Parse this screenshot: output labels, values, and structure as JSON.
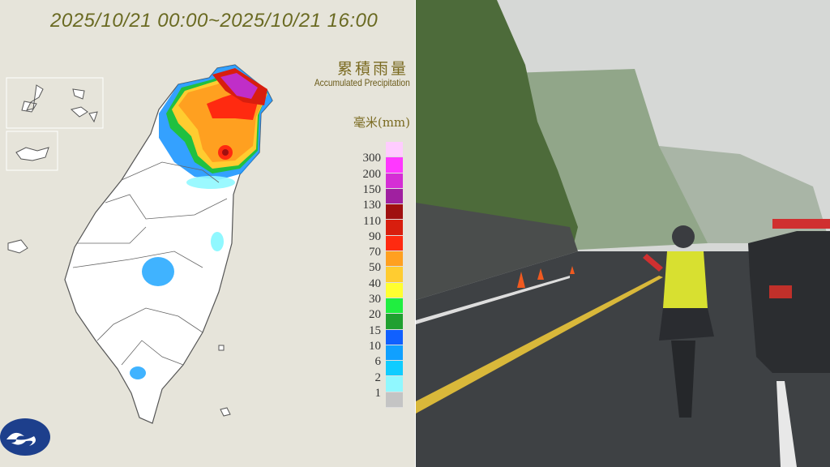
{
  "map": {
    "title": "2025/10/21 00:00~2025/10/21 16:00",
    "legend_title_zh": "累積雨量",
    "legend_title_en": "Accumulated Precipitation",
    "unit": "毫米(mm)",
    "legend_labels": [
      "300",
      "200",
      "150",
      "130",
      "110",
      "90",
      "70",
      "50",
      "40",
      "30",
      "20",
      "15",
      "10",
      "6",
      "2",
      "1"
    ],
    "legend_colors": [
      "#ffccff",
      "#ff38ff",
      "#d52ed5",
      "#a020a0",
      "#a01010",
      "#d81e0e",
      "#ff2a10",
      "#ffa020",
      "#ffcc30",
      "#ffff30",
      "#20ee40",
      "#20a030",
      "#1060ff",
      "#10a0ff",
      "#10ccff",
      "#90f8ff",
      "#c4c4c4"
    ],
    "logo": "central-weather-administration-logo"
  },
  "photo": {
    "description_icons": [
      "cliff",
      "road",
      "traffic-cones",
      "police-car",
      "traffic-officer"
    ]
  }
}
